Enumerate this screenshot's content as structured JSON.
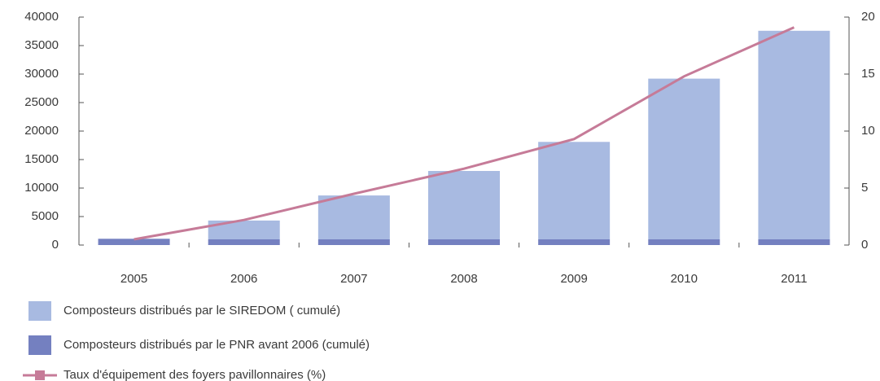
{
  "chart_data": {
    "type": "bar",
    "stacked": true,
    "categories": [
      "2005",
      "2006",
      "2007",
      "2008",
      "2009",
      "2010",
      "2011"
    ],
    "series": [
      {
        "name": "Composteurs distribués par le SIREDOM ( cumulé)",
        "color": "#a8bae1",
        "values": [
          0,
          3300,
          7700,
          12000,
          17100,
          28200,
          36600
        ]
      },
      {
        "name": "Composteurs distribués par le PNR avant 2006 (cumulé)",
        "color": "#7480c0",
        "values": [
          1100,
          1000,
          1000,
          1000,
          1000,
          1000,
          1000
        ]
      },
      {
        "name": "Taux d'équipement des foyers pavillonnaires (%)",
        "color": "#c67b98",
        "type": "line",
        "axis": "y2",
        "values": [
          0.5,
          2.2,
          4.5,
          6.7,
          9.3,
          14.8,
          19.1
        ]
      }
    ],
    "ylim": [
      0,
      40000
    ],
    "yticks": [
      0,
      5000,
      10000,
      15000,
      20000,
      25000,
      30000,
      35000,
      40000
    ],
    "y2lim": [
      0,
      20
    ],
    "y2ticks": [
      0,
      5,
      10,
      15,
      20
    ]
  }
}
